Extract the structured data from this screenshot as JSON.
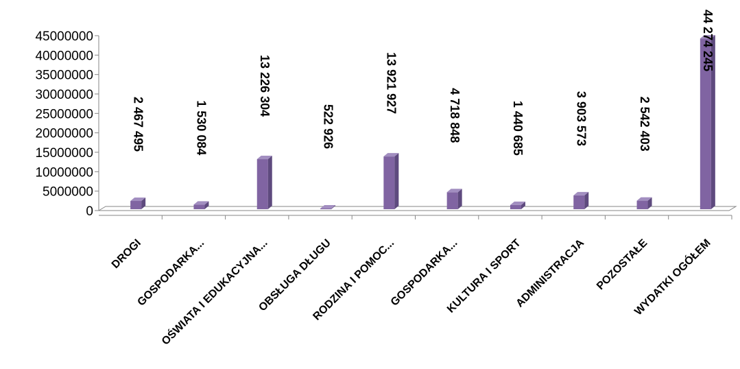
{
  "chart_data": {
    "type": "bar",
    "title": "",
    "xlabel": "",
    "ylabel": "",
    "ylim": [
      0,
      45000000
    ],
    "yticks": [
      0,
      5000000,
      10000000,
      15000000,
      20000000,
      25000000,
      30000000,
      35000000,
      40000000,
      45000000
    ],
    "ytick_labels": [
      "0",
      "5000000",
      "10000000",
      "15000000",
      "20000000",
      "25000000",
      "30000000",
      "35000000",
      "40000000",
      "45000000"
    ],
    "categories": [
      "DROGI",
      "GOSPODARKA...",
      "OŚWIATA I EDUKACYJNA...",
      "OBSŁUGA DŁUGU",
      "RODZINA I POMOC...",
      "GOSPODARKA...",
      "KULTURA I SPORT",
      "ADMINISTRACJA",
      "POZOSTAŁE",
      "WYDATKI OGÓŁEM"
    ],
    "values": [
      2467495,
      1530084,
      13226304,
      522926,
      13921927,
      4718848,
      1440685,
      3903573,
      2542403,
      44274245
    ],
    "data_labels": [
      "2 467 495",
      "1 530 084",
      "13 226 304",
      "522 926",
      "13 921 927",
      "4 718 848",
      "1 440 685",
      "3 903 573",
      "2 542 403",
      "44 274 245"
    ],
    "grid": false,
    "legend": "none",
    "bar_color": "#8064A2"
  }
}
